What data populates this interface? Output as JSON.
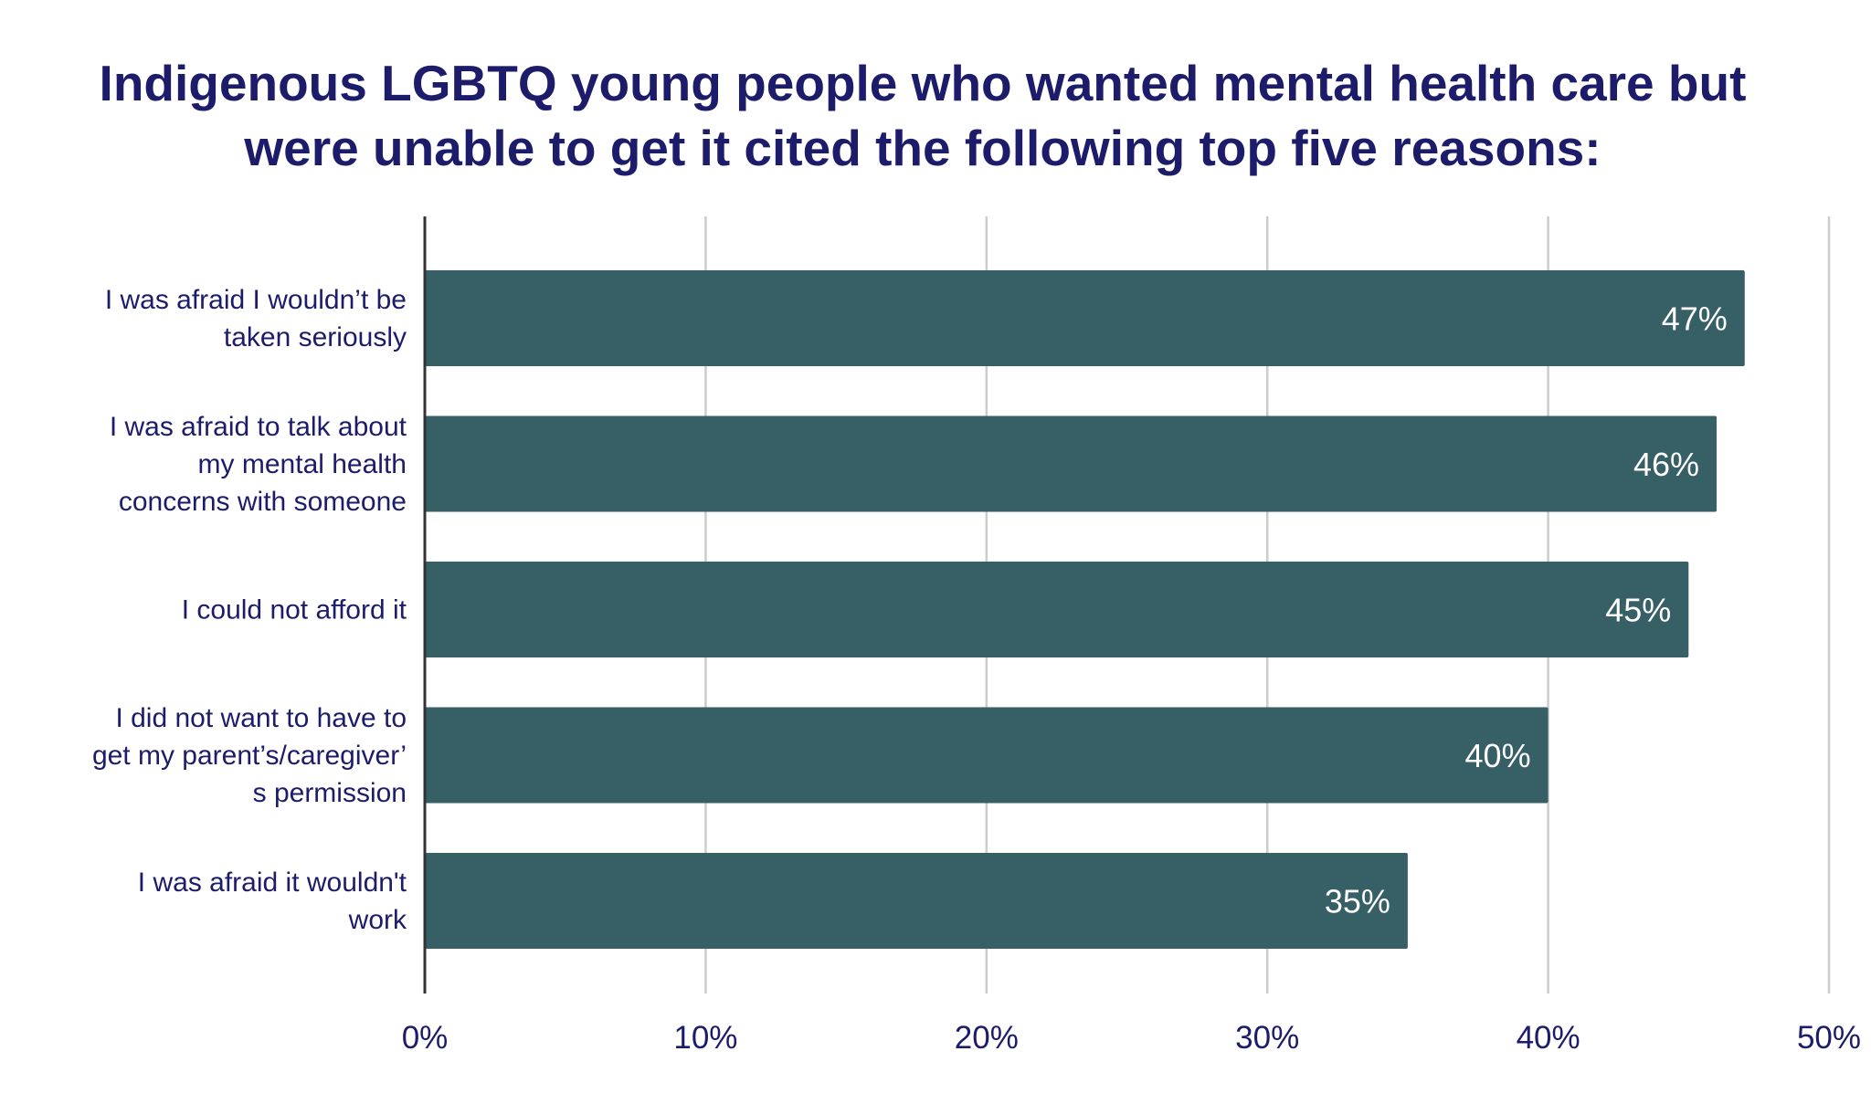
{
  "chart_data": {
    "type": "bar",
    "orientation": "horizontal",
    "title": "Indigenous LGBTQ young people who wanted  mental health care but\nwere unable to get it cited the following top five reasons:",
    "categories": [
      [
        "I was afraid I wouldn’t be",
        "taken seriously"
      ],
      [
        "I was afraid to talk about",
        "my mental health",
        "concerns with someone"
      ],
      [
        "I could not afford it"
      ],
      [
        "I did not want to have to",
        "get my parent’s/caregiver’",
        "s permission"
      ],
      [
        "I was afraid it wouldn't",
        "work"
      ]
    ],
    "values": [
      47,
      46,
      45,
      40,
      35
    ],
    "data_labels": [
      "47%",
      "46%",
      "45%",
      "40%",
      "35%"
    ],
    "xlim": [
      0,
      50
    ],
    "x_ticks": [
      0,
      10,
      20,
      30,
      40,
      50
    ],
    "x_tick_labels": [
      "0%",
      "10%",
      "20%",
      "30%",
      "40%",
      "50%"
    ],
    "grid": "vertical",
    "colors": {
      "bar": "#375f66",
      "title": "#1c1c6b",
      "text": "#1c1c6b",
      "grid": "#cccccc",
      "axis": "#333333",
      "data_label": "#ffffff"
    }
  }
}
